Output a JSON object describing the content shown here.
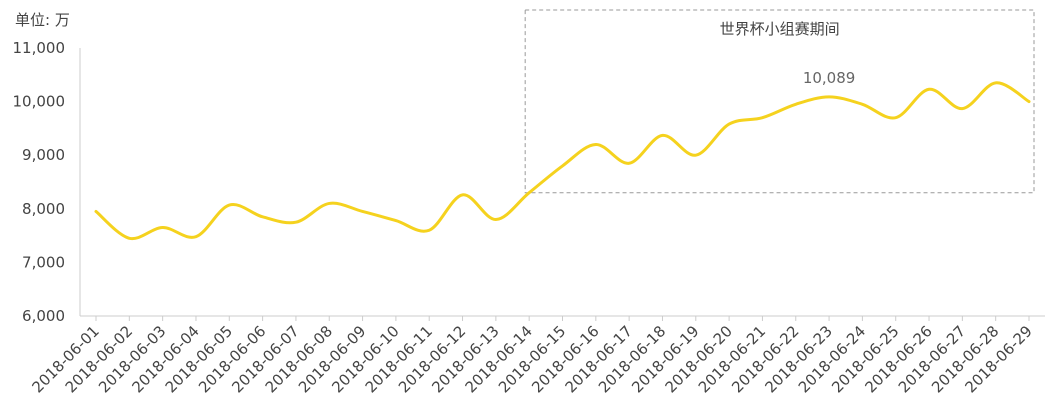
{
  "chart_data": {
    "type": "line",
    "unit_label": "单位: 万",
    "x": [
      "2018-06-01",
      "2018-06-02",
      "2018-06-03",
      "2018-06-04",
      "2018-06-05",
      "2018-06-06",
      "2018-06-07",
      "2018-06-08",
      "2018-06-09",
      "2018-06-10",
      "2018-06-11",
      "2018-06-12",
      "2018-06-13",
      "2018-06-14",
      "2018-06-15",
      "2018-06-16",
      "2018-06-17",
      "2018-06-18",
      "2018-06-19",
      "2018-06-20",
      "2018-06-21",
      "2018-06-22",
      "2018-06-23",
      "2018-06-24",
      "2018-06-25",
      "2018-06-26",
      "2018-06-27",
      "2018-06-28",
      "2018-06-29"
    ],
    "series": [
      {
        "values": [
          7950,
          7450,
          7650,
          7480,
          8070,
          7850,
          7750,
          8100,
          7950,
          7780,
          7600,
          8260,
          7800,
          8300,
          8800,
          9200,
          8850,
          9370,
          9000,
          9580,
          9700,
          9950,
          10089,
          9950,
          9700,
          10230,
          9870,
          10350,
          10000
        ],
        "color": "#F5D21E"
      }
    ],
    "ylim": [
      6000,
      11000
    ],
    "yticks": [
      6000,
      7000,
      8000,
      9000,
      10000,
      11000
    ],
    "ytick_labels": [
      "6,000",
      "7,000",
      "8,000",
      "9,000",
      "10,000",
      "11,000"
    ],
    "grid": false,
    "annotations": [
      {
        "type": "region",
        "label": "世界杯小组赛期间",
        "x_start": "2018-06-14",
        "x_end": "2018-06-29",
        "y_start": 8300,
        "y_end": 11000
      },
      {
        "type": "data_label",
        "x": "2018-06-23",
        "text": "10,089"
      }
    ],
    "colors": {
      "line": "#F5D21E",
      "axis": "#CCCCCC",
      "region_border": "#999999",
      "text": "#444444"
    }
  }
}
